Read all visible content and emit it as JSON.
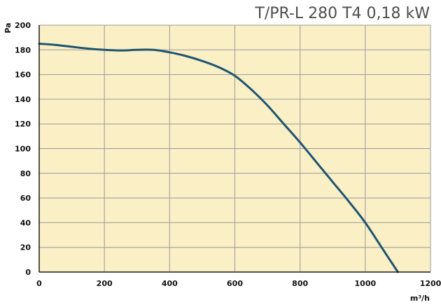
{
  "colors": {
    "plot_background": "#fbefc6",
    "grid": "#9a9a9a",
    "axis": "#1b1b1b",
    "curve": "#1d5470",
    "title": "#4e4e4e"
  },
  "chart_data": {
    "type": "line",
    "title": "T/PR-L 280 T4 0,18 kW",
    "xlabel": "m³/h",
    "ylabel": "Pa",
    "xlim": [
      0,
      1200
    ],
    "ylim": [
      0,
      200
    ],
    "x_ticks": [
      "0",
      "200",
      "400",
      "600",
      "800",
      "1000",
      "1200"
    ],
    "y_ticks": [
      "0",
      "20",
      "40",
      "60",
      "80",
      "100",
      "120",
      "140",
      "160",
      "180",
      "200"
    ],
    "grid": true,
    "legend": "none",
    "series": [
      {
        "x": [
          0,
          50,
          100,
          150,
          200,
          250,
          300,
          350,
          400,
          450,
          500,
          550,
          600,
          650,
          700,
          750,
          800,
          850,
          900,
          950,
          1000,
          1050,
          1100
        ],
        "y": [
          185,
          184,
          182.5,
          181,
          180,
          179.5,
          180,
          180,
          178,
          175,
          171,
          166,
          159,
          148,
          135,
          120,
          105,
          89,
          73,
          57,
          40,
          20,
          0
        ]
      }
    ]
  }
}
